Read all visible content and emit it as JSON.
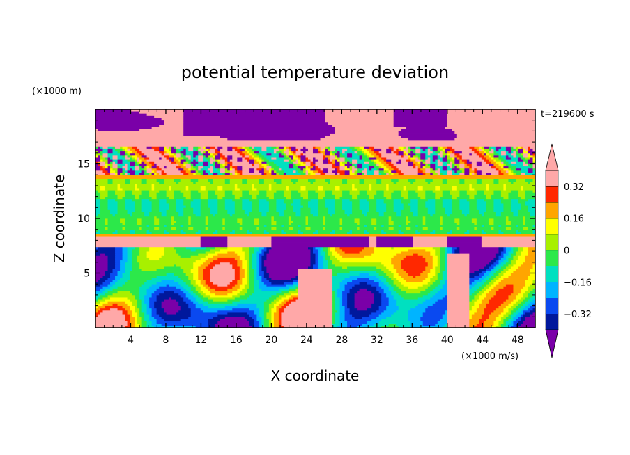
{
  "chart_data": {
    "type": "heatmap",
    "title": "potential temperature deviation",
    "xlabel": "X coordinate",
    "ylabel": "Z coordinate",
    "x_unit": "(×1000 m/s)",
    "y_unit": "(×1000 m)",
    "time_label": "t=219600 s",
    "xlim": [
      0,
      50
    ],
    "ylim": [
      0,
      20
    ],
    "x_ticks": [
      "4",
      "8",
      "12",
      "16",
      "20",
      "24",
      "28",
      "32",
      "36",
      "40",
      "44",
      "48"
    ],
    "y_ticks": [
      "5",
      "10",
      "15"
    ],
    "colorbar": {
      "labels": [
        "0.32",
        "0.16",
        "0",
        "-0.16",
        "-0.32"
      ],
      "label_text": [
        "0.32",
        "0.16",
        "0",
        "−0.16",
        "−0.32"
      ],
      "levels": [
        -0.4,
        -0.32,
        -0.24,
        -0.16,
        -0.08,
        0,
        0.08,
        0.16,
        0.24,
        0.32,
        0.4
      ],
      "colors": [
        "#7a00a8",
        "#00189c",
        "#0a49f0",
        "#00b4ff",
        "#00e0c0",
        "#2ce84a",
        "#a8f000",
        "#ffff00",
        "#ffa500",
        "#ff2800",
        "#ffa8a8"
      ],
      "extend": "both"
    },
    "layers": [
      {
        "z_range": [
          16.5,
          20
        ],
        "description": "positive (+0.4) with large negative blobs"
      },
      {
        "z_range": [
          13.5,
          16.5
        ],
        "description": "mixed small-scale perturbations"
      },
      {
        "z_range": [
          8.5,
          13.5
        ],
        "description": "weak, near 0 to 0.08"
      },
      {
        "z_range": [
          0,
          8.5
        ],
        "description": "large convective eddies, -0.4 to +0.4"
      }
    ]
  }
}
